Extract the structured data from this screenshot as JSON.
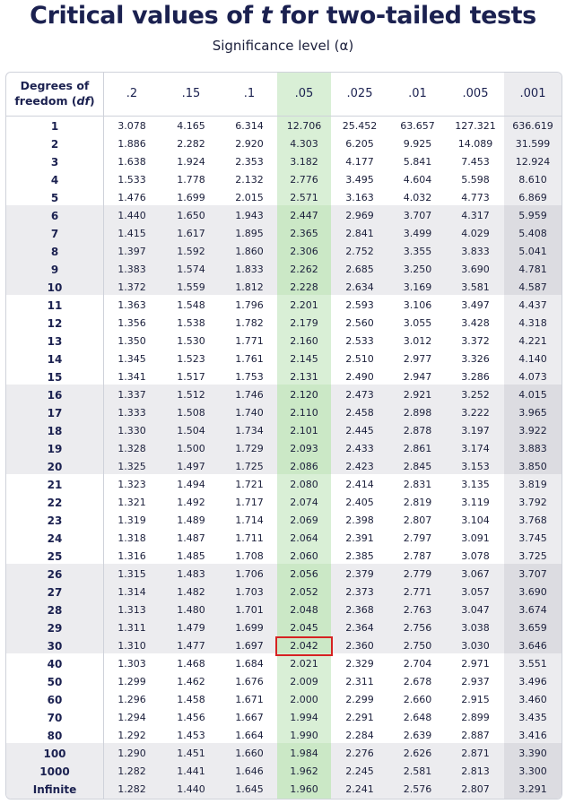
{
  "title": {
    "prefix": "Critical values of ",
    "variable": "t",
    "suffix": " for two-tailed tests"
  },
  "subtitle": "Significance level (α)",
  "header": {
    "df_line1": "Degrees of",
    "df_line2a": "freedom (",
    "df_line2b": "df",
    "df_line2c": ")",
    "alphas": [
      ".2",
      ".15",
      ".1",
      ".05",
      ".025",
      ".01",
      ".005",
      ".001"
    ]
  },
  "highlighted_column": ".05",
  "highlighted_cell": {
    "df": "30",
    "alpha": ".05",
    "value": "2.042"
  },
  "colors": {
    "title": "#1b2150",
    "green_col": "#d9efd6",
    "grey_col": "#ececef",
    "highlight_box": "#d62222"
  },
  "rows": [
    {
      "df": "1",
      "values": [
        "3.078",
        "4.165",
        "6.314",
        "12.706",
        "25.452",
        "63.657",
        "127.321",
        "636.619"
      ]
    },
    {
      "df": "2",
      "values": [
        "1.886",
        "2.282",
        "2.920",
        "4.303",
        "6.205",
        "9.925",
        "14.089",
        "31.599"
      ]
    },
    {
      "df": "3",
      "values": [
        "1.638",
        "1.924",
        "2.353",
        "3.182",
        "4.177",
        "5.841",
        "7.453",
        "12.924"
      ]
    },
    {
      "df": "4",
      "values": [
        "1.533",
        "1.778",
        "2.132",
        "2.776",
        "3.495",
        "4.604",
        "5.598",
        "8.610"
      ]
    },
    {
      "df": "5",
      "values": [
        "1.476",
        "1.699",
        "2.015",
        "2.571",
        "3.163",
        "4.032",
        "4.773",
        "6.869"
      ]
    },
    {
      "df": "6",
      "values": [
        "1.440",
        "1.650",
        "1.943",
        "2.447",
        "2.969",
        "3.707",
        "4.317",
        "5.959"
      ]
    },
    {
      "df": "7",
      "values": [
        "1.415",
        "1.617",
        "1.895",
        "2.365",
        "2.841",
        "3.499",
        "4.029",
        "5.408"
      ]
    },
    {
      "df": "8",
      "values": [
        "1.397",
        "1.592",
        "1.860",
        "2.306",
        "2.752",
        "3.355",
        "3.833",
        "5.041"
      ]
    },
    {
      "df": "9",
      "values": [
        "1.383",
        "1.574",
        "1.833",
        "2.262",
        "2.685",
        "3.250",
        "3.690",
        "4.781"
      ]
    },
    {
      "df": "10",
      "values": [
        "1.372",
        "1.559",
        "1.812",
        "2.228",
        "2.634",
        "3.169",
        "3.581",
        "4.587"
      ]
    },
    {
      "df": "11",
      "values": [
        "1.363",
        "1.548",
        "1.796",
        "2.201",
        "2.593",
        "3.106",
        "3.497",
        "4.437"
      ]
    },
    {
      "df": "12",
      "values": [
        "1.356",
        "1.538",
        "1.782",
        "2.179",
        "2.560",
        "3.055",
        "3.428",
        "4.318"
      ]
    },
    {
      "df": "13",
      "values": [
        "1.350",
        "1.530",
        "1.771",
        "2.160",
        "2.533",
        "3.012",
        "3.372",
        "4.221"
      ]
    },
    {
      "df": "14",
      "values": [
        "1.345",
        "1.523",
        "1.761",
        "2.145",
        "2.510",
        "2.977",
        "3.326",
        "4.140"
      ]
    },
    {
      "df": "15",
      "values": [
        "1.341",
        "1.517",
        "1.753",
        "2.131",
        "2.490",
        "2.947",
        "3.286",
        "4.073"
      ]
    },
    {
      "df": "16",
      "values": [
        "1.337",
        "1.512",
        "1.746",
        "2.120",
        "2.473",
        "2.921",
        "3.252",
        "4.015"
      ]
    },
    {
      "df": "17",
      "values": [
        "1.333",
        "1.508",
        "1.740",
        "2.110",
        "2.458",
        "2.898",
        "3.222",
        "3.965"
      ]
    },
    {
      "df": "18",
      "values": [
        "1.330",
        "1.504",
        "1.734",
        "2.101",
        "2.445",
        "2.878",
        "3.197",
        "3.922"
      ]
    },
    {
      "df": "19",
      "values": [
        "1.328",
        "1.500",
        "1.729",
        "2.093",
        "2.433",
        "2.861",
        "3.174",
        "3.883"
      ]
    },
    {
      "df": "20",
      "values": [
        "1.325",
        "1.497",
        "1.725",
        "2.086",
        "2.423",
        "2.845",
        "3.153",
        "3.850"
      ]
    },
    {
      "df": "21",
      "values": [
        "1.323",
        "1.494",
        "1.721",
        "2.080",
        "2.414",
        "2.831",
        "3.135",
        "3.819"
      ]
    },
    {
      "df": "22",
      "values": [
        "1.321",
        "1.492",
        "1.717",
        "2.074",
        "2.405",
        "2.819",
        "3.119",
        "3.792"
      ]
    },
    {
      "df": "23",
      "values": [
        "1.319",
        "1.489",
        "1.714",
        "2.069",
        "2.398",
        "2.807",
        "3.104",
        "3.768"
      ]
    },
    {
      "df": "24",
      "values": [
        "1.318",
        "1.487",
        "1.711",
        "2.064",
        "2.391",
        "2.797",
        "3.091",
        "3.745"
      ]
    },
    {
      "df": "25",
      "values": [
        "1.316",
        "1.485",
        "1.708",
        "2.060",
        "2.385",
        "2.787",
        "3.078",
        "3.725"
      ]
    },
    {
      "df": "26",
      "values": [
        "1.315",
        "1.483",
        "1.706",
        "2.056",
        "2.379",
        "2.779",
        "3.067",
        "3.707"
      ]
    },
    {
      "df": "27",
      "values": [
        "1.314",
        "1.482",
        "1.703",
        "2.052",
        "2.373",
        "2.771",
        "3.057",
        "3.690"
      ]
    },
    {
      "df": "28",
      "values": [
        "1.313",
        "1.480",
        "1.701",
        "2.048",
        "2.368",
        "2.763",
        "3.047",
        "3.674"
      ]
    },
    {
      "df": "29",
      "values": [
        "1.311",
        "1.479",
        "1.699",
        "2.045",
        "2.364",
        "2.756",
        "3.038",
        "3.659"
      ]
    },
    {
      "df": "30",
      "values": [
        "1.310",
        "1.477",
        "1.697",
        "2.042",
        "2.360",
        "2.750",
        "3.030",
        "3.646"
      ]
    },
    {
      "df": "40",
      "values": [
        "1.303",
        "1.468",
        "1.684",
        "2.021",
        "2.329",
        "2.704",
        "2.971",
        "3.551"
      ]
    },
    {
      "df": "50",
      "values": [
        "1.299",
        "1.462",
        "1.676",
        "2.009",
        "2.311",
        "2.678",
        "2.937",
        "3.496"
      ]
    },
    {
      "df": "60",
      "values": [
        "1.296",
        "1.458",
        "1.671",
        "2.000",
        "2.299",
        "2.660",
        "2.915",
        "3.460"
      ]
    },
    {
      "df": "70",
      "values": [
        "1.294",
        "1.456",
        "1.667",
        "1.994",
        "2.291",
        "2.648",
        "2.899",
        "3.435"
      ]
    },
    {
      "df": "80",
      "values": [
        "1.292",
        "1.453",
        "1.664",
        "1.990",
        "2.284",
        "2.639",
        "2.887",
        "3.416"
      ]
    },
    {
      "df": "100",
      "values": [
        "1.290",
        "1.451",
        "1.660",
        "1.984",
        "2.276",
        "2.626",
        "2.871",
        "3.390"
      ]
    },
    {
      "df": "1000",
      "values": [
        "1.282",
        "1.441",
        "1.646",
        "1.962",
        "2.245",
        "2.581",
        "2.813",
        "3.300"
      ]
    },
    {
      "df": "Infinite",
      "values": [
        "1.282",
        "1.440",
        "1.645",
        "1.960",
        "2.241",
        "2.576",
        "2.807",
        "3.291"
      ]
    }
  ]
}
